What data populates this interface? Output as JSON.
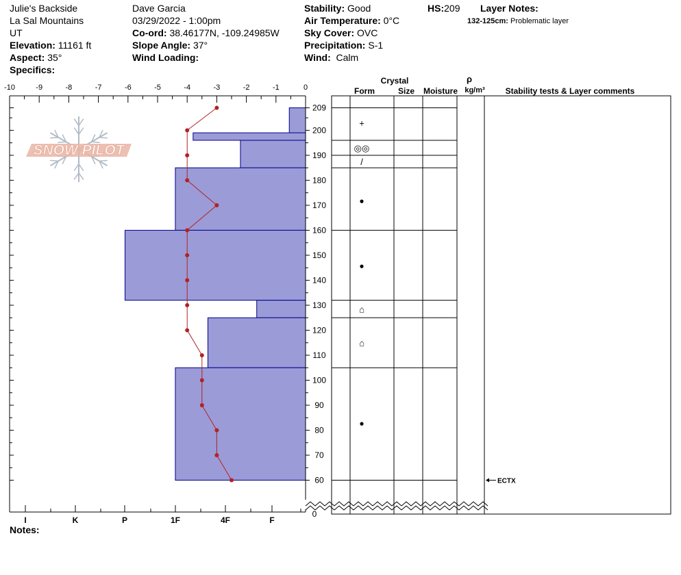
{
  "header": {
    "location_name": "Julie's Backside",
    "range": "La Sal Mountains",
    "state": "UT",
    "elevation_label": "Elevation:",
    "elevation_value": "11161 ft",
    "aspect_label": "Aspect:",
    "aspect_value": "35°",
    "specifics_label": "Specifics:",
    "observer": "Dave Garcia",
    "datetime": "03/29/2022 - 1:00pm",
    "coord_label": "Co-ord:",
    "coord_value": "38.46177N, -109.24985W",
    "slope_label": "Slope Angle:",
    "slope_value": "37°",
    "wind_loading_label": "Wind Loading:",
    "stability_label": "Stability:",
    "stability_value": "Good",
    "air_temp_label": "Air Temperature:",
    "air_temp_value": "0°C",
    "sky_label": "Sky Cover:",
    "sky_value": "OVC",
    "precip_label": "Precipitation:",
    "precip_value": "S-1",
    "wind_label": "Wind:",
    "wind_value": "Calm",
    "hs_label": "HS:",
    "hs_value": "209",
    "layer_notes_label": "Layer Notes:",
    "layer_note_range": "132-125cm:",
    "layer_note_text": "Problematic layer",
    "notes_label": "Notes:"
  },
  "logo": {
    "text": "SNOW PILOT"
  },
  "table_headers": {
    "crystal": "Crystal",
    "form": "Form",
    "size": "Size",
    "moisture": "Moisture",
    "rho": "ρ",
    "density_unit": "kg/m³",
    "comments": "Stability tests & Layer comments"
  },
  "chart_data": {
    "type": "snow-profile",
    "temperature_axis": {
      "ticks": [
        "-10",
        "-9",
        "-8",
        "-7",
        "-6",
        "-5",
        "-4",
        "-3",
        "-2",
        "-1",
        "0"
      ],
      "range": [
        -10,
        0
      ]
    },
    "hardness_axis": {
      "labels": [
        "I",
        "K",
        "P",
        "1F",
        "4F",
        "F"
      ]
    },
    "height_axis": {
      "ticks": [
        60,
        70,
        80,
        90,
        100,
        110,
        120,
        130,
        140,
        150,
        160,
        170,
        180,
        190,
        200,
        209
      ],
      "zero_label": "0",
      "range": [
        0,
        209
      ]
    },
    "hand_hardness_layers": [
      {
        "top": 209,
        "bottom": 199,
        "hardness_value": -0.55
      },
      {
        "top": 199,
        "bottom": 196,
        "hardness_value": -3.8
      },
      {
        "top": 196,
        "bottom": 185,
        "hardness_value": -2.2
      },
      {
        "top": 185,
        "bottom": 160,
        "hardness_value": -4.4
      },
      {
        "top": 160,
        "bottom": 132,
        "hardness_value": -6.1
      },
      {
        "top": 132,
        "bottom": 125,
        "hardness_value": -1.65
      },
      {
        "top": 125,
        "bottom": 105,
        "hardness_value": -3.3
      },
      {
        "top": 105,
        "bottom": 60,
        "hardness_value": -4.4
      }
    ],
    "temperature_profile": {
      "heights": [
        209,
        200,
        190,
        180,
        170,
        160,
        150,
        140,
        130,
        120,
        110,
        100,
        90,
        80,
        70,
        60
      ],
      "temperatures": [
        -3.0,
        -4.0,
        -4.0,
        -4.0,
        -3.0,
        -4.0,
        -4.0,
        -4.0,
        -4.0,
        -4.0,
        -3.5,
        -3.5,
        -3.5,
        -3.0,
        -3.0,
        -2.5
      ]
    },
    "layer_boundaries": [
      209,
      196,
      190,
      185,
      160,
      132,
      125,
      105,
      60
    ],
    "grain_forms": [
      {
        "height": 203,
        "symbol": "+"
      },
      {
        "height": 193,
        "symbol": "◎◎"
      },
      {
        "height": 187.5,
        "symbol": "/"
      },
      {
        "height": 172,
        "symbol": "●"
      },
      {
        "height": 146,
        "symbol": "●"
      },
      {
        "height": 128.5,
        "symbol": "⌂"
      },
      {
        "height": 115,
        "symbol": "⌂"
      },
      {
        "height": 83,
        "symbol": "●"
      }
    ],
    "stability_tests": [
      {
        "height": 60,
        "label": "ECTX"
      }
    ]
  },
  "colors": {
    "hardness_fill": "#9b9bd7",
    "hardness_stroke": "#00008b",
    "temperature": "#b22222",
    "logo": "#e9b5a5",
    "flake": "#b0bcc6"
  }
}
